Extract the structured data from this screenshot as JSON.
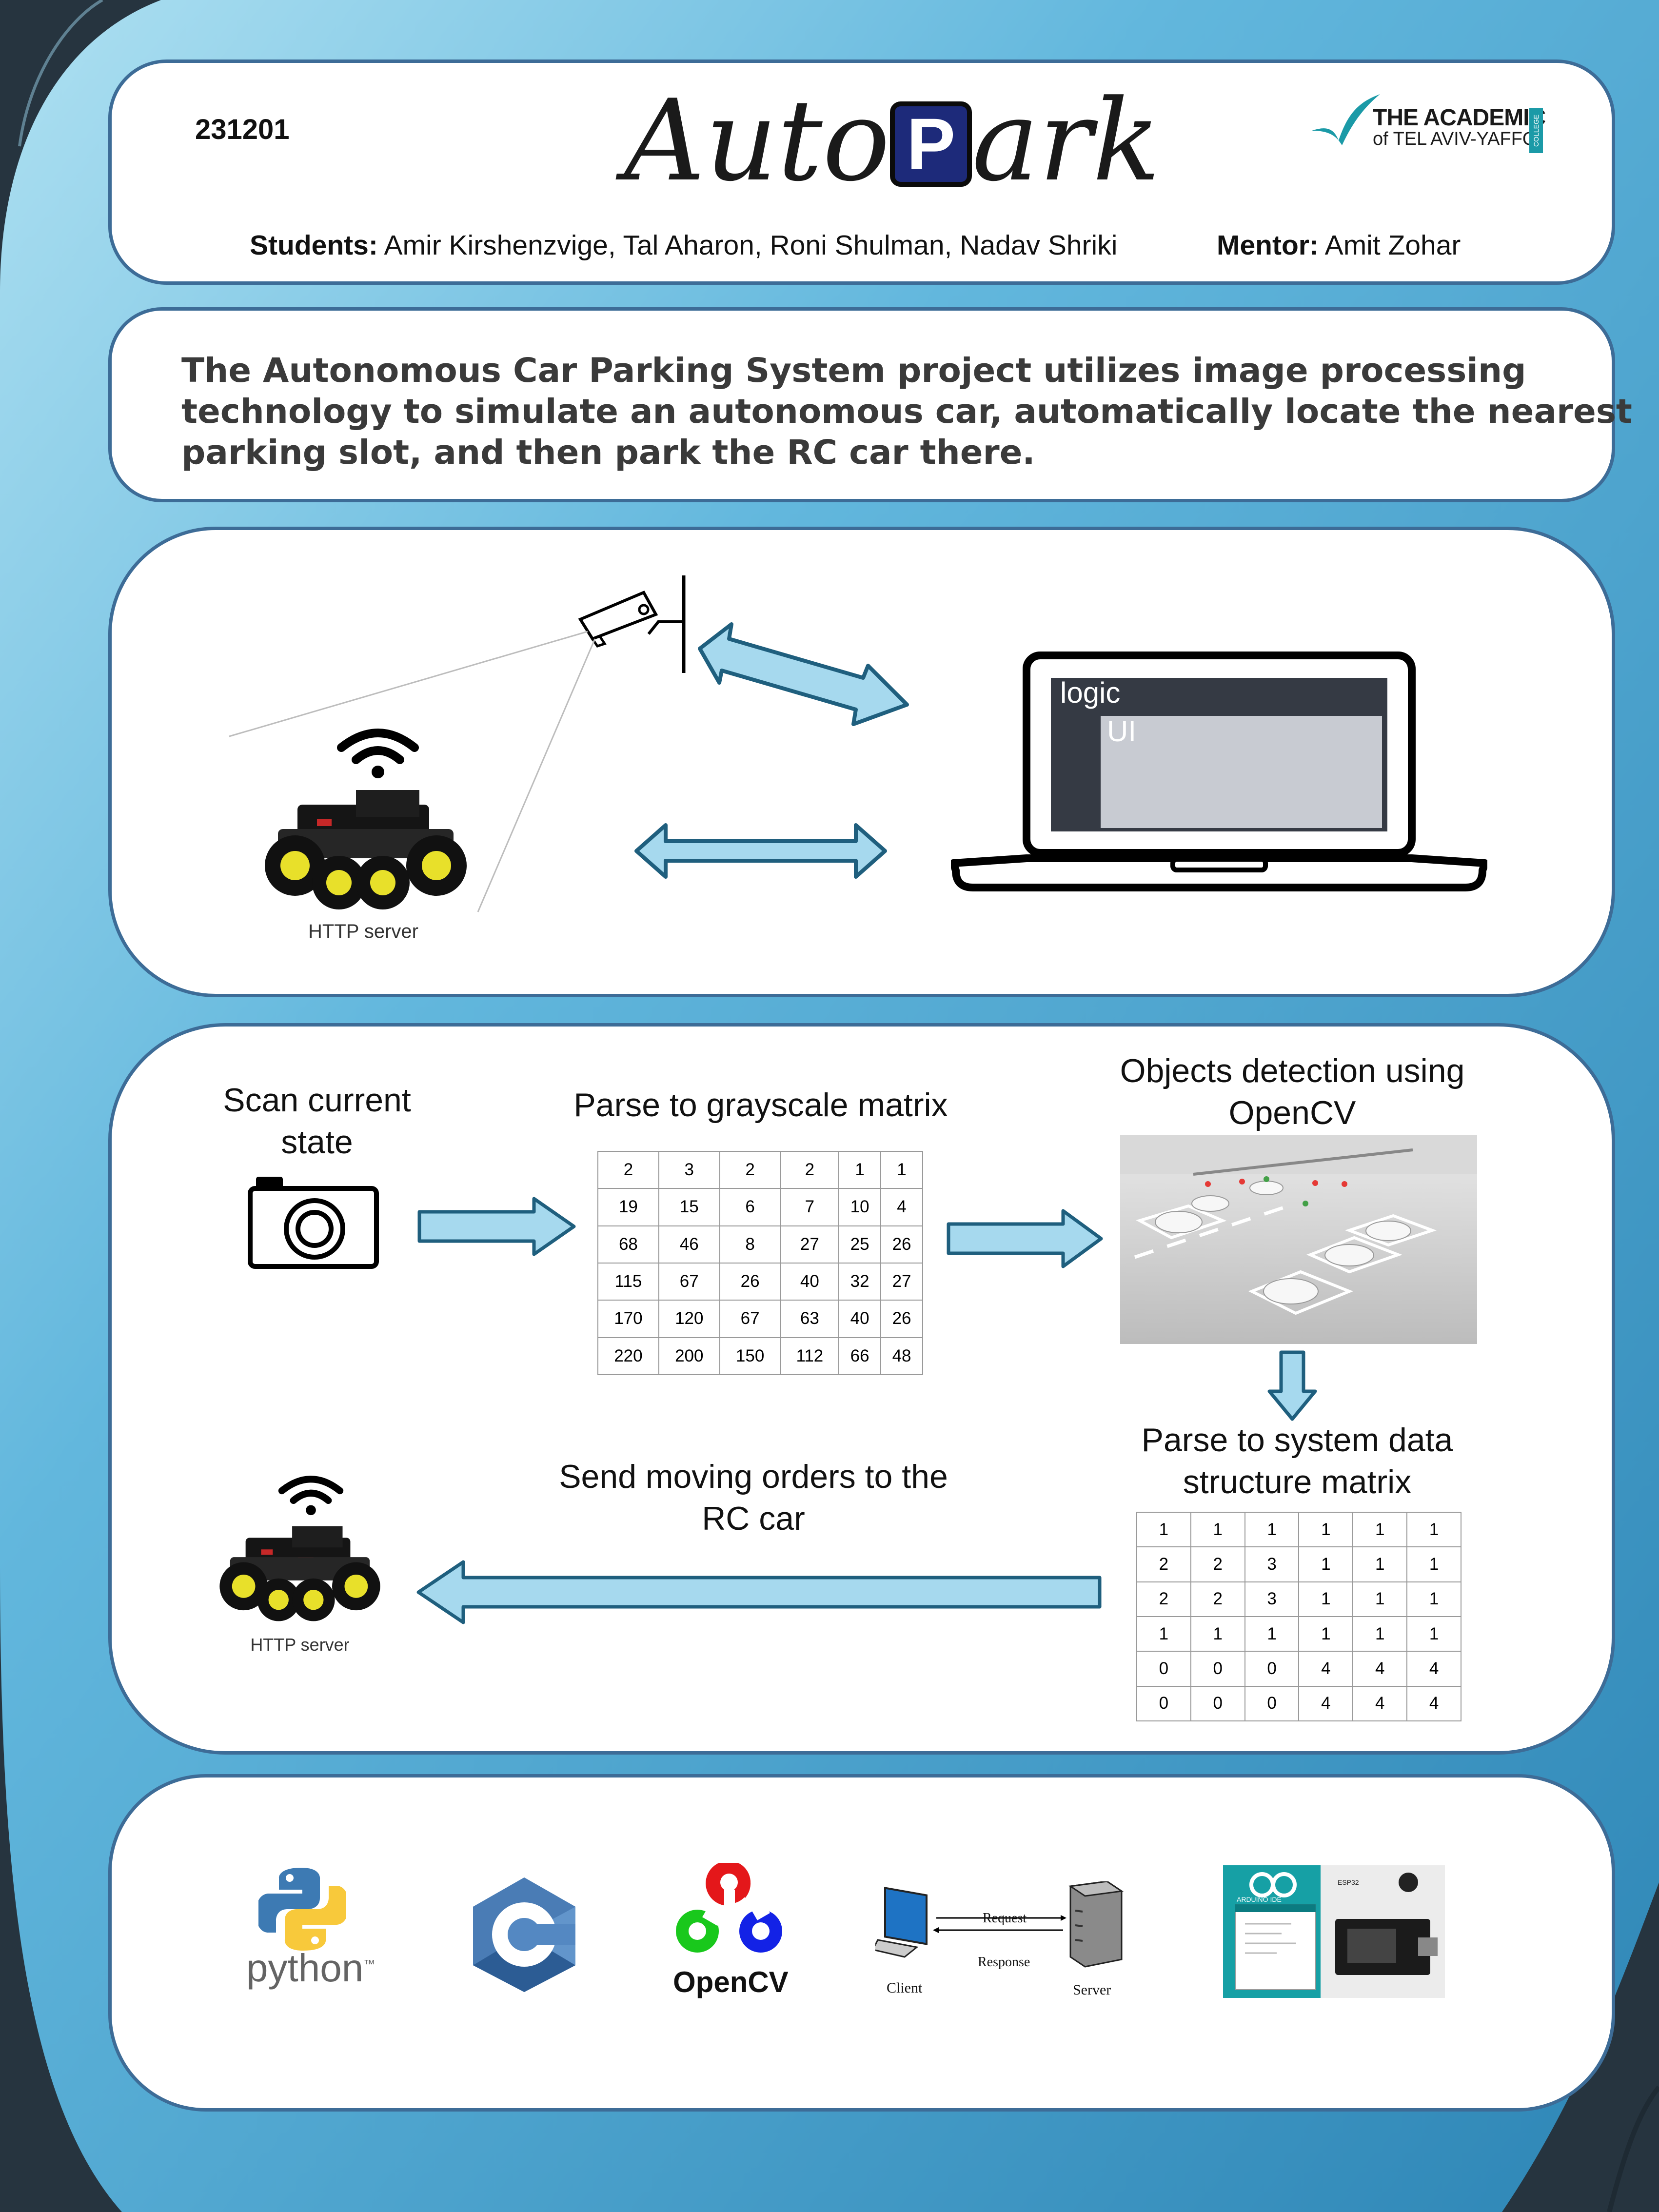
{
  "poster_id": "231201",
  "title": {
    "part1": "Auto",
    "p_letter": "P",
    "part2": "ark"
  },
  "college_logo": {
    "line1": "THE ACADEMIC",
    "line2": "of TEL AVIV-YAFFO",
    "side": "COLLEGE"
  },
  "students": {
    "label": "Students:",
    "names": "Amir Kirshenzvige, Tal Aharon, Roni Shulman, Nadav Shriki"
  },
  "mentor": {
    "label": "Mentor:",
    "name": "Amit Zohar"
  },
  "abstract": {
    "line1": "The Autonomous Car Parking System project utilizes image processing",
    "line2": "technology to simulate an autonomous car, automatically locate the nearest",
    "line3": "parking slot, and then park the RC car there."
  },
  "architecture": {
    "laptop_logic_label": "logic",
    "laptop_ui_label": "UI",
    "car_label": "HTTP server"
  },
  "pipeline": {
    "scan_label_1": "Scan current",
    "scan_label_2": "state",
    "grayscale_label": "Parse to grayscale matrix",
    "grayscale_matrix": [
      [
        "2",
        "3",
        "2",
        "2",
        "1",
        "1"
      ],
      [
        "19",
        "15",
        "6",
        "7",
        "10",
        "4"
      ],
      [
        "68",
        "46",
        "8",
        "27",
        "25",
        "26"
      ],
      [
        "115",
        "67",
        "26",
        "40",
        "32",
        "27"
      ],
      [
        "170",
        "120",
        "67",
        "63",
        "40",
        "26"
      ],
      [
        "220",
        "200",
        "150",
        "112",
        "66",
        "48"
      ]
    ],
    "detection_label_1": "Objects detection using",
    "detection_label_2": "OpenCV",
    "structure_label_1": "Parse to system data",
    "structure_label_2": "structure matrix",
    "structure_matrix": [
      [
        "1",
        "1",
        "1",
        "1",
        "1",
        "1"
      ],
      [
        "2",
        "2",
        "3",
        "1",
        "1",
        "1"
      ],
      [
        "2",
        "2",
        "3",
        "1",
        "1",
        "1"
      ],
      [
        "1",
        "1",
        "1",
        "1",
        "1",
        "1"
      ],
      [
        "0",
        "0",
        "0",
        "4",
        "4",
        "4"
      ],
      [
        "0",
        "0",
        "0",
        "4",
        "4",
        "4"
      ]
    ],
    "send_label_1": "Send moving orders to the",
    "send_label_2": "RC car",
    "car_label": "HTTP server"
  },
  "tech": {
    "python_label": "python",
    "python_tm": "™",
    "opencv_label": "OpenCV",
    "request_label": "Request",
    "response_label": "Response",
    "client_label": "Client",
    "server_label": "Server",
    "arduino_label": "ARDUINO IDE",
    "esp_label": "ESP32"
  },
  "colors": {
    "panel_border": "#3d6c97",
    "arrow_fill": "#a6d9ee",
    "arrow_stroke": "#1f5f7e",
    "logo_blue": "#1d2a7a",
    "background_blue": "#3b97c3"
  }
}
